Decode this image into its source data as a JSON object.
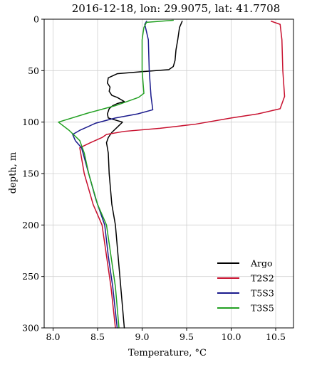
{
  "chart_data": {
    "type": "line",
    "title": "2016-12-18, lon: 29.9075,  lat: 41.7708",
    "xlabel": "Temperature, °C",
    "ylabel": "depth, m",
    "xlim": [
      7.9,
      10.7
    ],
    "ylim": [
      300,
      0
    ],
    "x_inverted": false,
    "y_inverted": true,
    "grid": true,
    "legend_position": "lower-right",
    "xticks": [
      8.0,
      8.5,
      9.0,
      9.5,
      10.0,
      10.5
    ],
    "xtick_labels": [
      "8.0",
      "8.5",
      "9.0",
      "9.5",
      "10.0",
      "10.5"
    ],
    "yticks": [
      0,
      50,
      100,
      150,
      200,
      250,
      300
    ],
    "ytick_labels": [
      "0",
      "50",
      "100",
      "150",
      "200",
      "250",
      "300"
    ],
    "series": [
      {
        "name": "Argo",
        "color": "#000000",
        "points": [
          [
            9.45,
            2
          ],
          [
            9.42,
            8
          ],
          [
            9.4,
            20
          ],
          [
            9.38,
            30
          ],
          [
            9.37,
            40
          ],
          [
            9.35,
            46
          ],
          [
            9.3,
            49
          ],
          [
            9.0,
            51
          ],
          [
            8.72,
            53
          ],
          [
            8.62,
            57
          ],
          [
            8.61,
            62
          ],
          [
            8.64,
            66
          ],
          [
            8.63,
            70
          ],
          [
            8.66,
            74
          ],
          [
            8.72,
            76
          ],
          [
            8.8,
            80
          ],
          [
            8.72,
            82
          ],
          [
            8.67,
            84
          ],
          [
            8.63,
            87
          ],
          [
            8.61,
            92
          ],
          [
            8.62,
            96
          ],
          [
            8.78,
            100
          ],
          [
            8.72,
            105
          ],
          [
            8.66,
            110
          ],
          [
            8.62,
            115
          ],
          [
            8.6,
            120
          ],
          [
            8.62,
            130
          ],
          [
            8.63,
            150
          ],
          [
            8.66,
            180
          ],
          [
            8.7,
            200
          ],
          [
            8.73,
            230
          ],
          [
            8.76,
            260
          ],
          [
            8.78,
            280
          ],
          [
            8.8,
            300
          ]
        ]
      },
      {
        "name": "T2S2",
        "color": "#c8102e",
        "points": [
          [
            10.45,
            2
          ],
          [
            10.55,
            5
          ],
          [
            10.57,
            20
          ],
          [
            10.58,
            50
          ],
          [
            10.6,
            75
          ],
          [
            10.55,
            87
          ],
          [
            10.3,
            92
          ],
          [
            10.0,
            96
          ],
          [
            9.6,
            102
          ],
          [
            9.2,
            106
          ],
          [
            8.8,
            109
          ],
          [
            8.6,
            112
          ],
          [
            8.55,
            115
          ],
          [
            8.42,
            120
          ],
          [
            8.3,
            125
          ],
          [
            8.35,
            150
          ],
          [
            8.45,
            180
          ],
          [
            8.55,
            200
          ],
          [
            8.6,
            230
          ],
          [
            8.65,
            260
          ],
          [
            8.7,
            300
          ]
        ]
      },
      {
        "name": "T5S3",
        "color": "#1a1a8c",
        "points": [
          [
            9.05,
            2
          ],
          [
            9.03,
            5
          ],
          [
            9.07,
            20
          ],
          [
            9.08,
            50
          ],
          [
            9.1,
            75
          ],
          [
            9.12,
            88
          ],
          [
            8.95,
            92
          ],
          [
            8.7,
            96
          ],
          [
            8.48,
            101
          ],
          [
            8.3,
            108
          ],
          [
            8.22,
            112
          ],
          [
            8.25,
            118
          ],
          [
            8.32,
            125
          ],
          [
            8.4,
            150
          ],
          [
            8.48,
            175
          ],
          [
            8.58,
            200
          ],
          [
            8.62,
            230
          ],
          [
            8.67,
            260
          ],
          [
            8.72,
            300
          ]
        ]
      },
      {
        "name": "T3S5",
        "color": "#22a022",
        "points": [
          [
            9.35,
            1
          ],
          [
            9.05,
            3
          ],
          [
            9.02,
            8
          ],
          [
            9.0,
            20
          ],
          [
            9.0,
            50
          ],
          [
            9.02,
            72
          ],
          [
            8.96,
            76
          ],
          [
            8.7,
            84
          ],
          [
            8.4,
            91
          ],
          [
            8.06,
            100
          ],
          [
            8.18,
            108
          ],
          [
            8.3,
            118
          ],
          [
            8.35,
            130
          ],
          [
            8.4,
            150
          ],
          [
            8.5,
            180
          ],
          [
            8.6,
            200
          ],
          [
            8.65,
            230
          ],
          [
            8.7,
            260
          ],
          [
            8.74,
            300
          ]
        ]
      }
    ]
  }
}
